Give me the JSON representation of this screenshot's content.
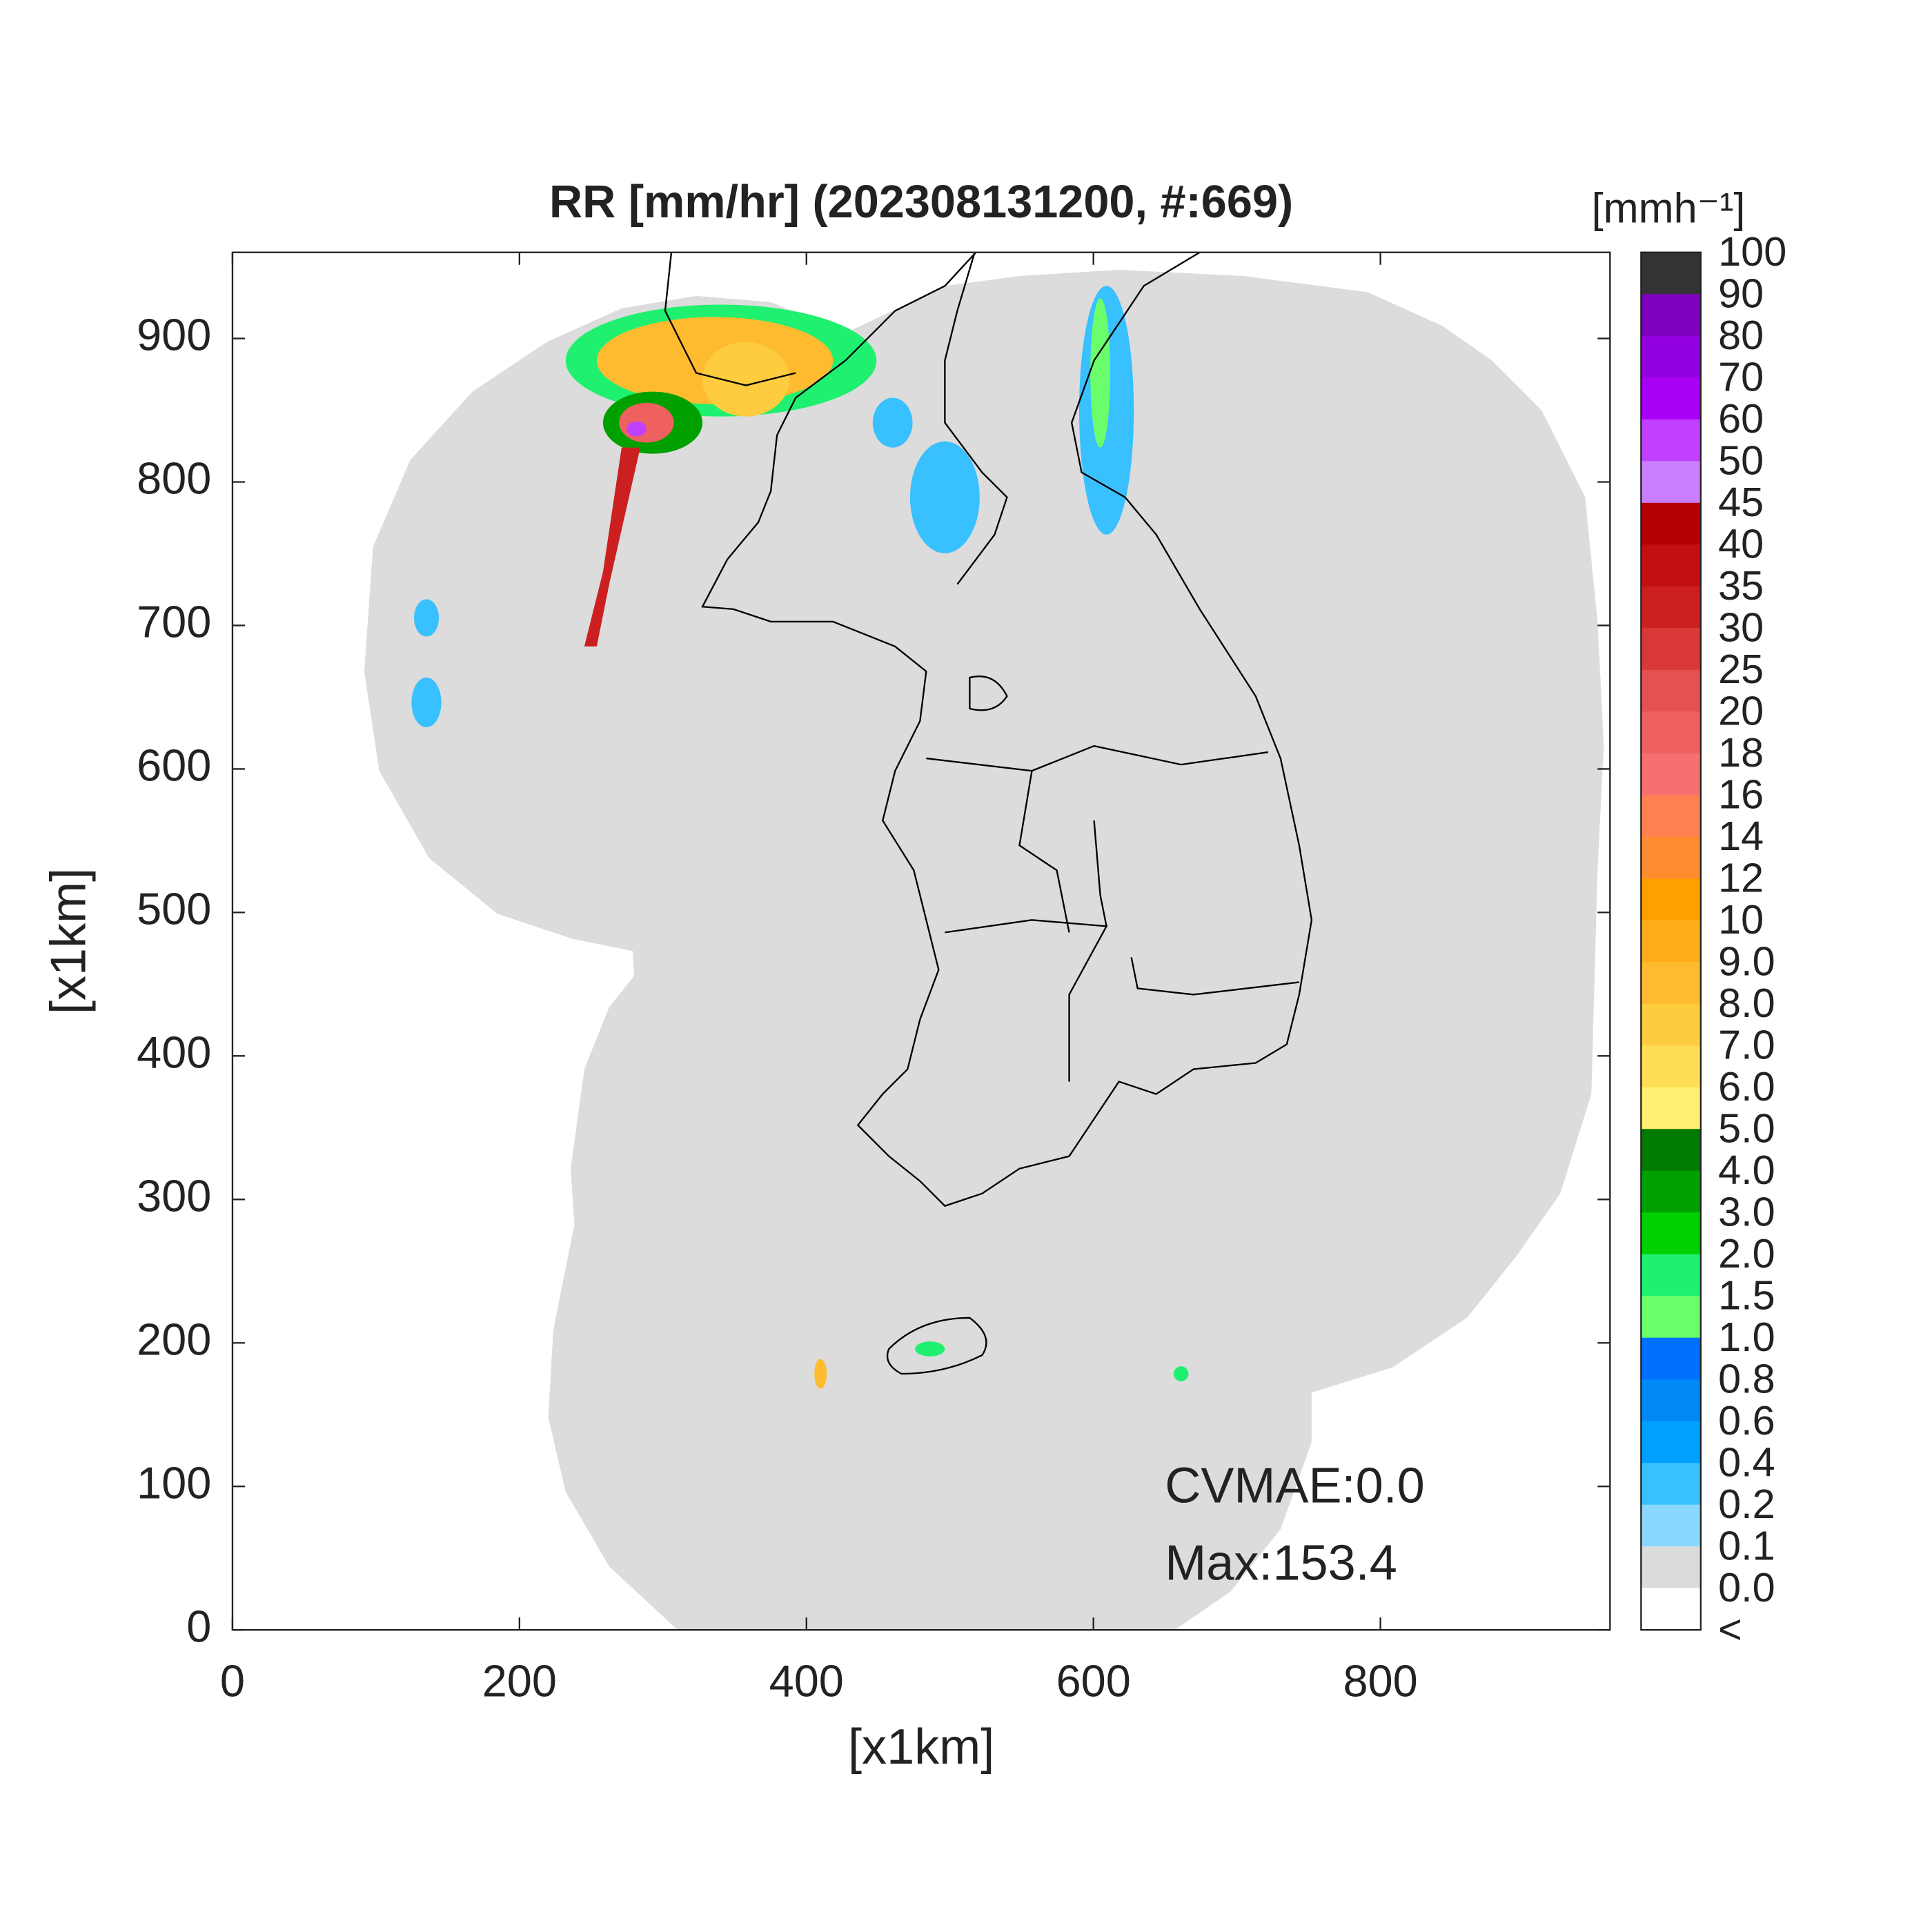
{
  "map": {
    "title": "RR [mm/hr] (202308131200, #:669)",
    "xlabel": "[x1km]",
    "ylabel": "[x1km]",
    "xlim": [
      0,
      960
    ],
    "ylim": [
      0,
      960
    ],
    "xticks": [
      0,
      200,
      400,
      600,
      800
    ],
    "yticks": [
      0,
      100,
      200,
      300,
      400,
      500,
      600,
      700,
      800,
      900
    ],
    "annotations": [
      "CVMAE:0.0",
      "Max:153.4"
    ],
    "colorbar": {
      "title": "[mmh⁻¹]",
      "labels": [
        "100",
        "90",
        "80",
        "70",
        "60",
        "50",
        "45",
        "40",
        "35",
        "30",
        "25",
        "20",
        "18",
        "16",
        "14",
        "12",
        "10",
        "9.0",
        "8.0",
        "7.0",
        "6.0",
        "5.0",
        "4.0",
        "3.0",
        "2.0",
        "1.5",
        "1.0",
        "0.8",
        "0.6",
        "0.4",
        "0.2",
        "0.1",
        "0.0",
        "<"
      ],
      "colors": [
        "#333333",
        "#7f00bf",
        "#9300e0",
        "#a800f5",
        "#c140ff",
        "#c880ff",
        "#b30000",
        "#c21010",
        "#cc2020",
        "#d93838",
        "#e55050",
        "#ef6060",
        "#f77070",
        "#ff8050",
        "#ff8c30",
        "#ffa000",
        "#ffad1a",
        "#ffbb30",
        "#ffcc40",
        "#ffdd55",
        "#ffee70",
        "#007a00",
        "#00a000",
        "#00d000",
        "#20f070",
        "#6aff6a",
        "#0070ff",
        "#0088f5",
        "#00a0ff",
        "#38c0ff",
        "#8ad8ff",
        "#dcdcdc",
        "#ffffff"
      ]
    }
  }
}
